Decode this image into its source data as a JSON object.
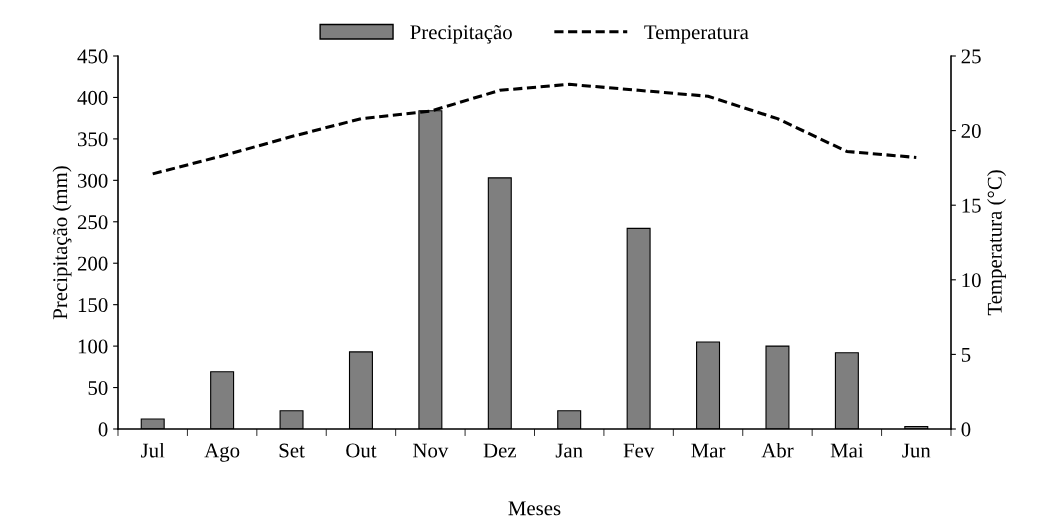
{
  "chart_data": {
    "type": "bar",
    "xlabel": "Meses",
    "ylabel": "Precipitação (mm)",
    "y2label": "Temperatura (°C)",
    "categories": [
      "Jul",
      "Ago",
      "Set",
      "Out",
      "Nov",
      "Dez",
      "Jan",
      "Fev",
      "Mar",
      "Abr",
      "Mai",
      "Jun"
    ],
    "series": [
      {
        "name": "Precipitação",
        "color": "#7f7f7f",
        "values": [
          12,
          69,
          22,
          93,
          384,
          303,
          22,
          242,
          105,
          100,
          92,
          3
        ]
      },
      {
        "name": "Temperatura",
        "type": "line",
        "axis": "y2",
        "color": "#000000",
        "line_style": "dashed",
        "marker": "none",
        "values": [
          17.1,
          18.3,
          19.6,
          20.8,
          21.3,
          22.7,
          23.1,
          22.7,
          22.3,
          20.8,
          18.6,
          18.2
        ]
      }
    ],
    "ylim": [
      0,
      450
    ],
    "yticks": [
      0,
      50,
      100,
      150,
      200,
      250,
      300,
      350,
      400,
      450
    ],
    "y2lim": [
      0,
      25
    ],
    "y2ticks": [
      0,
      5,
      10,
      15,
      20,
      25
    ],
    "grid": false,
    "legend": "top"
  }
}
